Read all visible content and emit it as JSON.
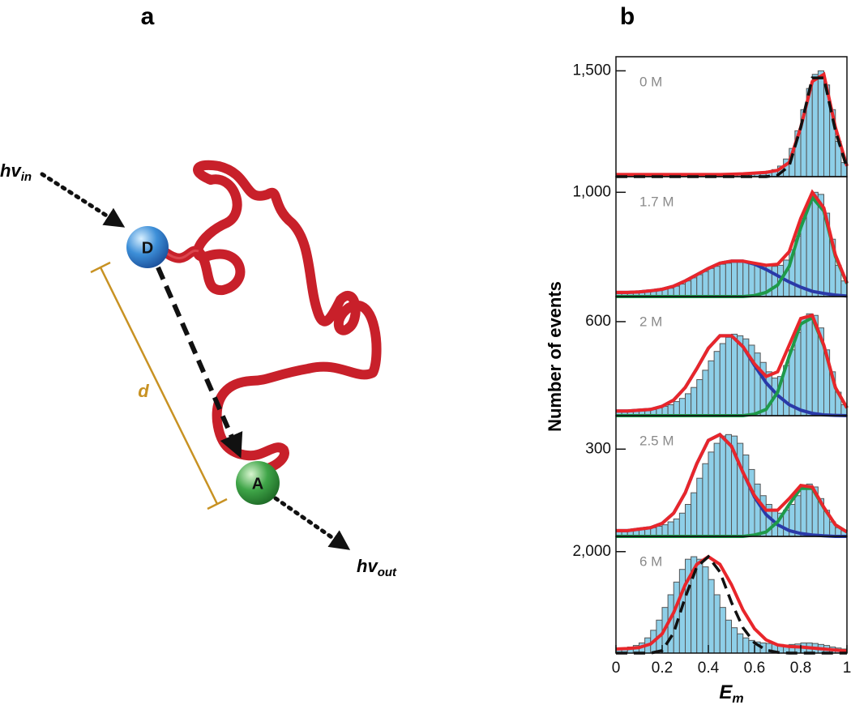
{
  "panel_labels": [
    "a",
    "b"
  ],
  "diagram": {
    "hv_in": {
      "base": "hv",
      "sub": "in"
    },
    "donor": "D",
    "distance": "d",
    "acceptor": "A",
    "hv_out": {
      "base": "hv",
      "sub": "out"
    }
  },
  "y_label": "Number of events",
  "chart_data": [
    {
      "type": "histogram",
      "label": "0 M",
      "color": "#8ecfe8",
      "xlim": [
        0,
        1
      ],
      "ylim": [
        0,
        1700
      ],
      "yticks": [
        {
          "value": 1500,
          "label": "1,500"
        }
      ],
      "bins": [
        0,
        0.025,
        0.05,
        0.075,
        0.1,
        0.125,
        0.15,
        0.175,
        0.2,
        0.225,
        0.25,
        0.275,
        0.3,
        0.325,
        0.35,
        0.375,
        0.4,
        0.425,
        0.45,
        0.475,
        0.5,
        0.525,
        0.55,
        0.575,
        0.6,
        0.625,
        0.65,
        0.675,
        0.7,
        0.725,
        0.75,
        0.775,
        0.8,
        0.825,
        0.85,
        0.875,
        0.9,
        0.925,
        0.95,
        0.975,
        1
      ],
      "values": [
        30,
        30,
        30,
        30,
        30,
        30,
        30,
        30,
        30,
        30,
        30,
        30,
        30,
        30,
        30,
        30,
        30,
        30,
        30,
        30,
        40,
        40,
        50,
        50,
        60,
        70,
        80,
        100,
        150,
        250,
        400,
        650,
        950,
        1250,
        1450,
        1500,
        1300,
        950,
        500,
        200
      ],
      "fit_x": [
        0,
        0.05,
        0.1,
        0.15,
        0.2,
        0.25,
        0.3,
        0.35,
        0.4,
        0.45,
        0.5,
        0.55,
        0.6,
        0.65,
        0.7,
        0.75,
        0.8,
        0.85,
        0.9,
        0.95,
        1
      ],
      "fits": [
        {
          "color": "#e8262b",
          "dashed": false,
          "values": [
            30,
            30,
            30,
            30,
            30,
            30,
            30,
            30,
            30,
            30,
            35,
            40,
            50,
            60,
            90,
            200,
            700,
            1350,
            1450,
            700,
            150
          ]
        },
        {
          "color": "#111111",
          "dashed": true,
          "values": [
            0,
            0,
            0,
            0,
            0,
            0,
            0,
            0,
            0,
            0,
            0,
            0,
            0,
            0,
            20,
            150,
            700,
            1400,
            1400,
            650,
            120
          ]
        }
      ]
    },
    {
      "type": "histogram",
      "label": "1.7 M",
      "color": "#8ecfe8",
      "xlim": [
        0,
        1
      ],
      "ylim": [
        0,
        1150
      ],
      "yticks": [
        {
          "value": 1000,
          "label": "1,000"
        }
      ],
      "bins": [
        0,
        0.025,
        0.05,
        0.075,
        0.1,
        0.125,
        0.15,
        0.175,
        0.2,
        0.225,
        0.25,
        0.275,
        0.3,
        0.325,
        0.35,
        0.375,
        0.4,
        0.425,
        0.45,
        0.475,
        0.5,
        0.525,
        0.55,
        0.575,
        0.6,
        0.625,
        0.65,
        0.675,
        0.7,
        0.725,
        0.75,
        0.775,
        0.8,
        0.825,
        0.85,
        0.875,
        0.9,
        0.925,
        0.95,
        0.975,
        1
      ],
      "values": [
        40,
        40,
        40,
        45,
        45,
        50,
        55,
        60,
        70,
        80,
        100,
        120,
        150,
        180,
        210,
        240,
        270,
        290,
        310,
        320,
        330,
        340,
        340,
        330,
        320,
        310,
        300,
        290,
        300,
        350,
        450,
        580,
        750,
        900,
        1000,
        980,
        800,
        550,
        300,
        150
      ],
      "fit_x": [
        0,
        0.05,
        0.1,
        0.15,
        0.2,
        0.25,
        0.3,
        0.35,
        0.4,
        0.45,
        0.5,
        0.55,
        0.6,
        0.65,
        0.7,
        0.75,
        0.8,
        0.85,
        0.9,
        0.95,
        1
      ],
      "fits": [
        {
          "color": "#2a3aa8",
          "dashed": false,
          "values": [
            40,
            40,
            45,
            55,
            70,
            100,
            150,
            210,
            270,
            320,
            340,
            340,
            310,
            260,
            200,
            140,
            90,
            50,
            30,
            15,
            5
          ]
        },
        {
          "color": "#1f9a4a",
          "dashed": false,
          "values": [
            0,
            0,
            0,
            0,
            0,
            0,
            0,
            0,
            0,
            0,
            0,
            0,
            10,
            40,
            110,
            290,
            660,
            950,
            820,
            385,
            125
          ]
        },
        {
          "color": "#e8262b",
          "dashed": false,
          "values": [
            40,
            40,
            45,
            55,
            70,
            100,
            150,
            210,
            270,
            320,
            340,
            340,
            320,
            300,
            310,
            430,
            750,
            1000,
            850,
            400,
            130
          ]
        }
      ]
    },
    {
      "type": "histogram",
      "label": "2 M",
      "color": "#8ecfe8",
      "xlim": [
        0,
        1
      ],
      "ylim": [
        0,
        760
      ],
      "yticks": [
        600
      ],
      "bins": [
        0,
        0.025,
        0.05,
        0.075,
        0.1,
        0.125,
        0.15,
        0.175,
        0.2,
        0.225,
        0.25,
        0.275,
        0.3,
        0.325,
        0.35,
        0.375,
        0.4,
        0.425,
        0.45,
        0.475,
        0.5,
        0.525,
        0.55,
        0.575,
        0.6,
        0.625,
        0.65,
        0.675,
        0.7,
        0.725,
        0.75,
        0.775,
        0.8,
        0.825,
        0.85,
        0.875,
        0.9,
        0.925,
        0.95,
        0.975,
        1
      ],
      "values": [
        30,
        30,
        30,
        35,
        35,
        40,
        40,
        50,
        60,
        70,
        90,
        110,
        140,
        180,
        230,
        290,
        350,
        410,
        460,
        500,
        520,
        510,
        490,
        450,
        400,
        340,
        280,
        240,
        250,
        320,
        420,
        530,
        620,
        650,
        640,
        560,
        420,
        280,
        150,
        70
      ],
      "fit_x": [
        0,
        0.05,
        0.1,
        0.15,
        0.2,
        0.25,
        0.3,
        0.35,
        0.4,
        0.45,
        0.5,
        0.55,
        0.6,
        0.65,
        0.7,
        0.75,
        0.8,
        0.85,
        0.9,
        0.95,
        1
      ],
      "fits": [
        {
          "color": "#2a3aa8",
          "dashed": false,
          "values": [
            30,
            30,
            35,
            40,
            60,
            100,
            180,
            300,
            430,
            510,
            510,
            440,
            320,
            210,
            130,
            70,
            35,
            15,
            5,
            2,
            0
          ]
        },
        {
          "color": "#1f9a4a",
          "dashed": false,
          "values": [
            0,
            0,
            0,
            0,
            0,
            0,
            0,
            0,
            0,
            0,
            0,
            0,
            10,
            40,
            150,
            380,
            585,
            625,
            445,
            178,
            50
          ]
        },
        {
          "color": "#e8262b",
          "dashed": false,
          "values": [
            30,
            30,
            35,
            40,
            60,
            100,
            180,
            300,
            430,
            510,
            510,
            440,
            330,
            250,
            280,
            450,
            620,
            640,
            450,
            180,
            50
          ]
        }
      ]
    },
    {
      "type": "histogram",
      "label": "2.5 M",
      "color": "#8ecfe8",
      "xlim": [
        0,
        1
      ],
      "ylim": [
        0,
        415
      ],
      "yticks": [
        300
      ],
      "bins": [
        0,
        0.025,
        0.05,
        0.075,
        0.1,
        0.125,
        0.15,
        0.175,
        0.2,
        0.225,
        0.25,
        0.275,
        0.3,
        0.325,
        0.35,
        0.375,
        0.4,
        0.425,
        0.45,
        0.475,
        0.5,
        0.525,
        0.55,
        0.575,
        0.6,
        0.625,
        0.65,
        0.675,
        0.7,
        0.725,
        0.75,
        0.775,
        0.8,
        0.825,
        0.85,
        0.875,
        0.9,
        0.925,
        0.95,
        0.975,
        1
      ],
      "values": [
        20,
        20,
        20,
        25,
        25,
        30,
        30,
        35,
        40,
        50,
        60,
        80,
        110,
        150,
        200,
        250,
        290,
        320,
        345,
        350,
        345,
        320,
        280,
        230,
        180,
        140,
        110,
        90,
        80,
        90,
        110,
        140,
        170,
        180,
        170,
        130,
        90,
        50,
        30,
        20
      ],
      "fit_x": [
        0,
        0.05,
        0.1,
        0.15,
        0.2,
        0.25,
        0.3,
        0.35,
        0.4,
        0.45,
        0.5,
        0.55,
        0.6,
        0.65,
        0.7,
        0.75,
        0.8,
        0.85,
        0.9,
        0.95,
        1
      ],
      "fits": [
        {
          "color": "#2a3aa8",
          "dashed": false,
          "values": [
            20,
            20,
            25,
            30,
            45,
            80,
            150,
            250,
            330,
            350,
            310,
            220,
            135,
            75,
            40,
            20,
            10,
            5,
            2,
            0,
            0
          ]
        },
        {
          "color": "#1f9a4a",
          "dashed": false,
          "values": [
            0,
            0,
            0,
            0,
            0,
            0,
            0,
            0,
            0,
            0,
            0,
            0,
            5,
            15,
            50,
            110,
            165,
            165,
            98,
            40,
            15
          ]
        },
        {
          "color": "#e8262b",
          "dashed": false,
          "values": [
            20,
            20,
            25,
            30,
            45,
            80,
            150,
            250,
            330,
            350,
            310,
            220,
            140,
            90,
            90,
            130,
            175,
            170,
            100,
            40,
            15
          ]
        }
      ]
    },
    {
      "type": "histogram",
      "label": "6 M",
      "color": "#8ecfe8",
      "xlim": [
        0,
        1
      ],
      "ylim": [
        0,
        2300
      ],
      "yticks": [
        {
          "value": 2000,
          "label": "2,000"
        }
      ],
      "xticks": [
        0,
        0.2,
        0.4,
        0.6,
        0.8,
        1
      ],
      "x_label": {
        "base": "E",
        "sub": "m"
      },
      "bins": [
        0,
        0.025,
        0.05,
        0.075,
        0.1,
        0.125,
        0.15,
        0.175,
        0.2,
        0.225,
        0.25,
        0.275,
        0.3,
        0.325,
        0.35,
        0.375,
        0.4,
        0.425,
        0.45,
        0.475,
        0.5,
        0.525,
        0.55,
        0.575,
        0.6,
        0.625,
        0.65,
        0.675,
        0.7,
        0.725,
        0.75,
        0.775,
        0.8,
        0.825,
        0.85,
        0.875,
        0.9,
        0.925,
        0.95,
        0.975,
        1
      ],
      "values": [
        100,
        100,
        120,
        150,
        200,
        300,
        450,
        650,
        900,
        1150,
        1400,
        1650,
        1850,
        1900,
        1850,
        1700,
        1450,
        1150,
        900,
        650,
        500,
        380,
        300,
        250,
        220,
        200,
        190,
        180,
        170,
        160,
        170,
        180,
        200,
        200,
        190,
        170,
        150,
        120,
        100,
        80
      ],
      "fit_x": [
        0,
        0.05,
        0.1,
        0.15,
        0.2,
        0.25,
        0.3,
        0.35,
        0.4,
        0.45,
        0.5,
        0.55,
        0.6,
        0.65,
        0.7,
        0.75,
        0.8,
        0.85,
        0.9,
        0.95,
        1
      ],
      "fits": [
        {
          "color": "#e8262b",
          "dashed": false,
          "values": [
            80,
            90,
            110,
            180,
            380,
            800,
            1350,
            1750,
            1900,
            1750,
            1350,
            850,
            480,
            260,
            160,
            130,
            120,
            100,
            80,
            60,
            40
          ]
        },
        {
          "color": "#111111",
          "dashed": true,
          "values": [
            0,
            0,
            0,
            0,
            50,
            400,
            1100,
            1700,
            1900,
            1600,
            1000,
            500,
            200,
            60,
            15,
            0,
            0,
            0,
            0,
            0,
            0
          ]
        }
      ]
    }
  ]
}
